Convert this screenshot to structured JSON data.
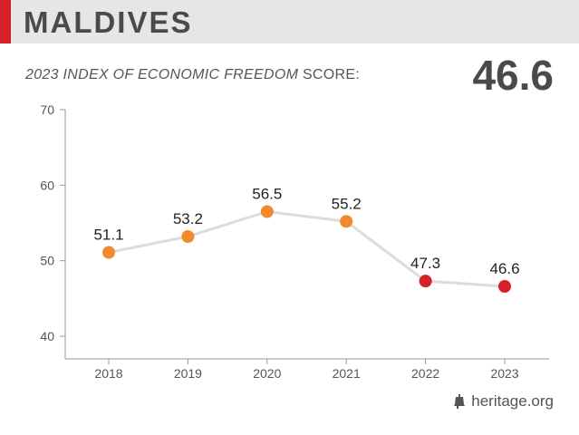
{
  "header": {
    "country": "MALDIVES",
    "accent_color": "#d42127"
  },
  "score": {
    "label_italic": "2023 INDEX OF ECONOMIC FREEDOM",
    "label_rest": " SCORE:",
    "value": "46.6"
  },
  "footer": {
    "source": "heritage.org",
    "icon": "liberty-bell-icon"
  },
  "chart_data": {
    "type": "line",
    "x": [
      "2018",
      "2019",
      "2020",
      "2021",
      "2022",
      "2023"
    ],
    "series": [
      {
        "values": [
          51.1,
          53.2,
          56.5,
          55.2,
          47.3,
          46.6
        ]
      }
    ],
    "point_colors": [
      "#f08a2c",
      "#f08a2c",
      "#f08a2c",
      "#f08a2c",
      "#d42127",
      "#d42127"
    ],
    "line_color": "#dcdcdc",
    "ylim": [
      40,
      70
    ],
    "yticks": [
      40,
      50,
      60,
      70
    ],
    "title": "",
    "xlabel": "",
    "ylabel": "",
    "grid": false
  }
}
